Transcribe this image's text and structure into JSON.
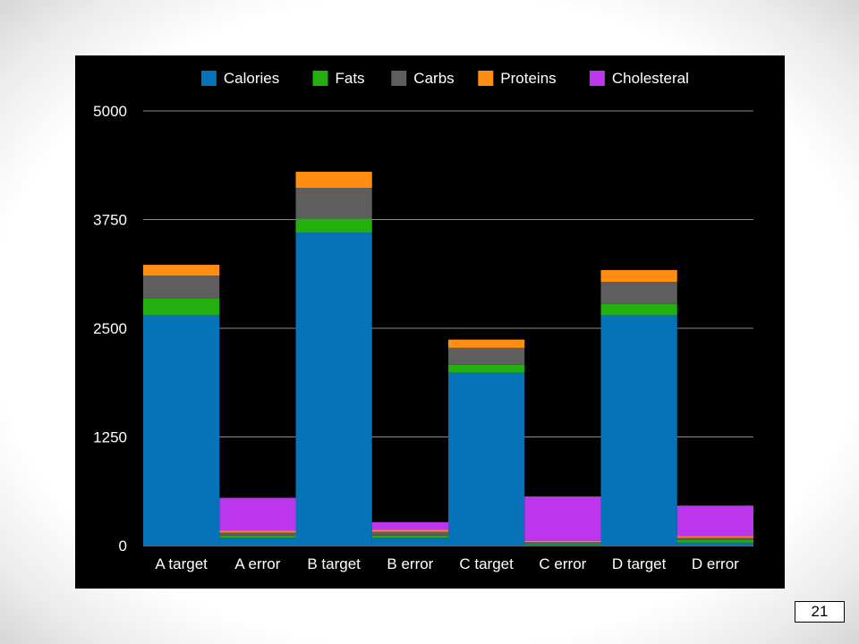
{
  "slide": {
    "page_number": "21"
  },
  "chart_data": {
    "type": "bar",
    "stacked": true,
    "categories": [
      "A target",
      "A error",
      "B target",
      "B error",
      "C target",
      "C error",
      "D target",
      "D error"
    ],
    "series": [
      {
        "name": "Calories",
        "color": "#0672B8",
        "values": [
          2650,
          90,
          3600,
          90,
          1990,
          15,
          2650,
          35
        ]
      },
      {
        "name": "Fats",
        "color": "#23B00F",
        "values": [
          190,
          25,
          160,
          25,
          90,
          10,
          130,
          30
        ]
      },
      {
        "name": "Carbs",
        "color": "#5E5E5E",
        "values": [
          265,
          35,
          355,
          45,
          195,
          15,
          255,
          25
        ]
      },
      {
        "name": "Proteins",
        "color": "#FF8E13",
        "values": [
          125,
          20,
          185,
          20,
          95,
          15,
          135,
          20
        ]
      },
      {
        "name": "Cholesteral",
        "color": "#BB36EC",
        "values": [
          0,
          380,
          0,
          90,
          0,
          510,
          0,
          350
        ]
      }
    ],
    "yticks": [
      "0",
      "1250",
      "2500",
      "3750",
      "5000"
    ],
    "ylim": [
      0,
      5000
    ],
    "grid": true,
    "legend_position": "top",
    "background": "#000000",
    "axis_text_color": "#FFFFFF",
    "gridline_color": "#8A8A8A"
  }
}
